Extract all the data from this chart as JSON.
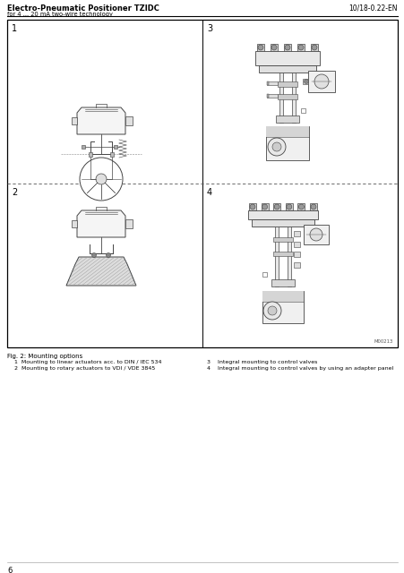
{
  "title_bold": "Electro-Pneumatic Positioner TZIDC",
  "title_sub": "for 4 ... 20 mA two-wire technology",
  "doc_number": "10/18-0.22-EN",
  "fig_caption": "Fig. 2: Mounting options",
  "caption_line1_left": "  1  Mounting to linear actuators acc. to DIN / IEC 534",
  "caption_line2_left": "  2  Mounting to rotary actuators to VDI / VDE 3845",
  "caption_line1_right": "3    Integral mounting to control valves",
  "caption_line2_right": "4    Integral mounting to control valves by using an adapter panel",
  "page_number": "6",
  "figure_id": "M00213",
  "bg_color": "#ffffff",
  "line_color": "#000000",
  "draw_color": "#444444",
  "gray_fill": "#cccccc",
  "dark_fill": "#666666"
}
